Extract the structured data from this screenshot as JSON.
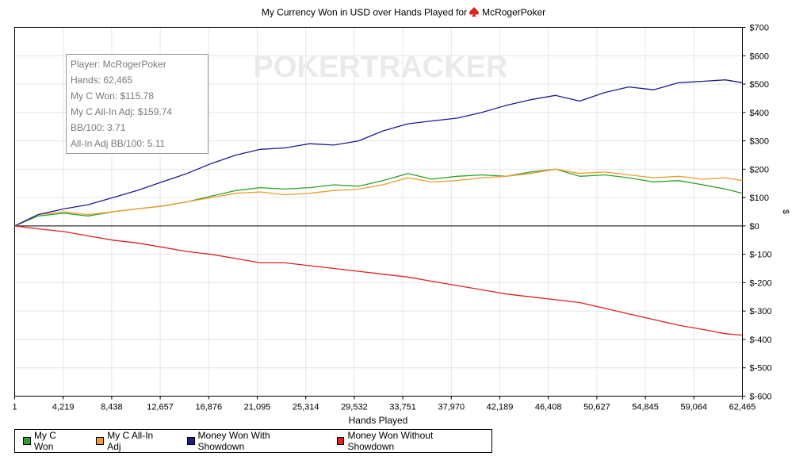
{
  "header": {
    "title_prefix": "My Currency Won in USD over Hands Played for",
    "player": "McRogerPoker"
  },
  "watermark": "POKERTRACKER",
  "stats": {
    "player": "Player: McRogerPoker",
    "hands": "Hands: 62,465",
    "won": "My C Won: $115.78",
    "allin_adj": "My C All-In Adj: $159.74",
    "bb100": "BB/100: 3.71",
    "allin_bb100": "All-In Adj BB/100: 5.11"
  },
  "legend": {
    "items": [
      {
        "label": "My C Won",
        "color": "#2ca02c"
      },
      {
        "label": "My C All-In Adj",
        "color": "#f39a2b"
      },
      {
        "label": "Money Won With Showdown",
        "color": "#1c1c8f"
      },
      {
        "label": "Money Won Without Showdown",
        "color": "#e02020"
      }
    ]
  },
  "chart_data": {
    "type": "line",
    "title": "My Currency Won in USD over Hands Played for McRogerPoker",
    "xlabel": "Hands Played",
    "ylabel": "$",
    "xlim": [
      1,
      62465
    ],
    "ylim": [
      -600,
      700
    ],
    "x_ticks": [
      "1",
      "4,219",
      "8,438",
      "12,657",
      "16,876",
      "21,095",
      "25,314",
      "29,532",
      "33,751",
      "37,970",
      "42,189",
      "46,408",
      "50,627",
      "54,845",
      "59,064",
      "62,465"
    ],
    "y_ticks": [
      "$700",
      "$600",
      "$500",
      "$400",
      "$300",
      "$200",
      "$100",
      "$0",
      "$-100",
      "$-200",
      "$-300",
      "$-400",
      "$-500",
      "$-600"
    ],
    "grid": true,
    "legend_position": "bottom",
    "series": [
      {
        "name": "My C Won",
        "color": "#2ca02c",
        "x": [
          1,
          2000,
          4219,
          6300,
          8438,
          10500,
          12657,
          14800,
          16876,
          19000,
          21095,
          23200,
          25314,
          27400,
          29532,
          31600,
          33751,
          35800,
          37970,
          40100,
          42189,
          44300,
          46408,
          48500,
          50627,
          52700,
          54845,
          57000,
          59064,
          61000,
          62465
        ],
        "y": [
          0,
          35,
          45,
          35,
          50,
          60,
          70,
          85,
          105,
          125,
          135,
          130,
          135,
          145,
          140,
          160,
          185,
          165,
          175,
          180,
          175,
          190,
          200,
          175,
          180,
          170,
          155,
          160,
          145,
          130,
          115
        ]
      },
      {
        "name": "My C All-In Adj",
        "color": "#f39a2b",
        "x": [
          1,
          2000,
          4219,
          6300,
          8438,
          10500,
          12657,
          14800,
          16876,
          19000,
          21095,
          23200,
          25314,
          27400,
          29532,
          31600,
          33751,
          35800,
          37970,
          40100,
          42189,
          44300,
          46408,
          48500,
          50627,
          52700,
          54845,
          57000,
          59064,
          61000,
          62465
        ],
        "y": [
          0,
          40,
          50,
          40,
          50,
          60,
          70,
          85,
          100,
          115,
          120,
          110,
          115,
          125,
          130,
          145,
          170,
          155,
          160,
          170,
          175,
          185,
          200,
          185,
          190,
          180,
          170,
          175,
          165,
          170,
          160
        ]
      },
      {
        "name": "Money Won With Showdown",
        "color": "#1c1c8f",
        "x": [
          1,
          2000,
          4219,
          6300,
          8438,
          10500,
          12657,
          14800,
          16876,
          19000,
          21095,
          23200,
          25314,
          27400,
          29532,
          31600,
          33751,
          35800,
          37970,
          40100,
          42189,
          44300,
          46408,
          48500,
          50627,
          52700,
          54845,
          57000,
          59064,
          61000,
          62465
        ],
        "y": [
          0,
          40,
          60,
          75,
          100,
          125,
          155,
          185,
          220,
          250,
          270,
          275,
          290,
          285,
          300,
          335,
          360,
          370,
          380,
          400,
          425,
          445,
          460,
          440,
          470,
          490,
          480,
          505,
          510,
          515,
          505
        ]
      },
      {
        "name": "Money Won Without Showdown",
        "color": "#e02020",
        "x": [
          1,
          2000,
          4219,
          6300,
          8438,
          10500,
          12657,
          14800,
          16876,
          19000,
          21095,
          23200,
          25314,
          27400,
          29532,
          31600,
          33751,
          35800,
          37970,
          40100,
          42189,
          44300,
          46408,
          48500,
          50627,
          52700,
          54845,
          57000,
          59064,
          61000,
          62465
        ],
        "y": [
          0,
          -10,
          -20,
          -35,
          -50,
          -60,
          -75,
          -90,
          -100,
          -115,
          -130,
          -130,
          -140,
          -150,
          -160,
          -170,
          -180,
          -195,
          -210,
          -225,
          -240,
          -250,
          -260,
          -270,
          -290,
          -310,
          -330,
          -350,
          -365,
          -380,
          -385
        ]
      }
    ]
  }
}
